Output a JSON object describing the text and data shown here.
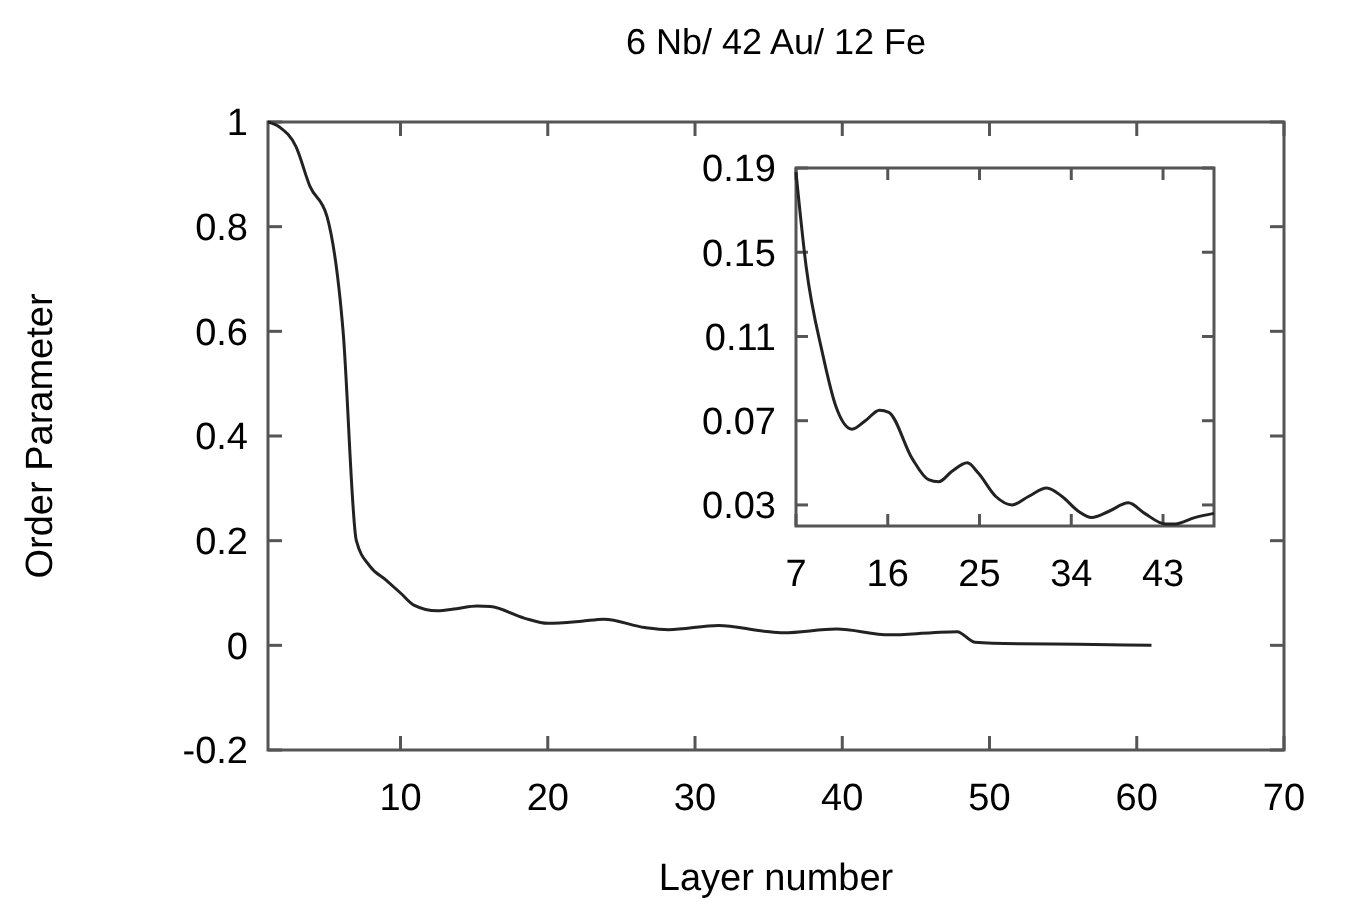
{
  "chart_data": [
    {
      "type": "line",
      "title": "6 Nb/ 42 Au/ 12 Fe",
      "xlabel": "Layer number",
      "ylabel": "Order Parameter",
      "xlim": [
        1,
        70
      ],
      "ylim": [
        -0.2,
        1
      ],
      "xticks": [
        10,
        20,
        30,
        40,
        50,
        60,
        70
      ],
      "yticks": [
        -0.2,
        0,
        0.2,
        0.4,
        0.6,
        0.8,
        1
      ],
      "grid": false,
      "marker": "none",
      "line_style": "solid",
      "series": [
        {
          "color": "#222222",
          "x": [
            1,
            1.8,
            2.9,
            3.85,
            5,
            6.1,
            7,
            7.9,
            9,
            10,
            10.9,
            12.5,
            13.8,
            15.2,
            16.1,
            18.4,
            20,
            22.3,
            23.8,
            26.6,
            28.2,
            31.6,
            34.7,
            36,
            39.6,
            43.2,
            46.1,
            47.8,
            49,
            52,
            56,
            61
          ],
          "values": [
            1.0,
            0.99,
            0.953,
            0.877,
            0.82,
            0.6,
            0.2,
            0.152,
            0.125,
            0.1,
            0.077,
            0.066,
            0.07,
            0.075,
            0.074,
            0.052,
            0.042,
            0.046,
            0.05,
            0.034,
            0.03,
            0.038,
            0.027,
            0.024,
            0.031,
            0.02,
            0.024,
            0.026,
            0.006,
            0.003,
            0.002,
            0.0
          ]
        }
      ]
    },
    {
      "type": "line",
      "xlim": [
        7,
        48
      ],
      "ylim": [
        0.02,
        0.19
      ],
      "xticks": [
        7,
        16,
        25,
        34,
        43
      ],
      "yticks": [
        0.03,
        0.07,
        0.11,
        0.15,
        0.19
      ],
      "grid": false,
      "marker": "none",
      "line_style": "solid",
      "series": [
        {
          "color": "#222222",
          "x": [
            7,
            8,
            9.6,
            10.9,
            12.5,
            13.8,
            15.2,
            16.1,
            18.4,
            20,
            21,
            22.3,
            23.8,
            24.9,
            26.6,
            28.2,
            29.8,
            31.6,
            33.1,
            34.7,
            36,
            37.7,
            39.6,
            41.2,
            43.2,
            44.2,
            46.1,
            48
          ],
          "values": [
            0.188,
            0.143,
            0.102,
            0.077,
            0.066,
            0.07,
            0.075,
            0.074,
            0.052,
            0.042,
            0.041,
            0.046,
            0.05,
            0.045,
            0.034,
            0.03,
            0.034,
            0.038,
            0.034,
            0.027,
            0.024,
            0.027,
            0.031,
            0.026,
            0.021,
            0.021,
            0.024,
            0.026
          ]
        }
      ]
    }
  ]
}
